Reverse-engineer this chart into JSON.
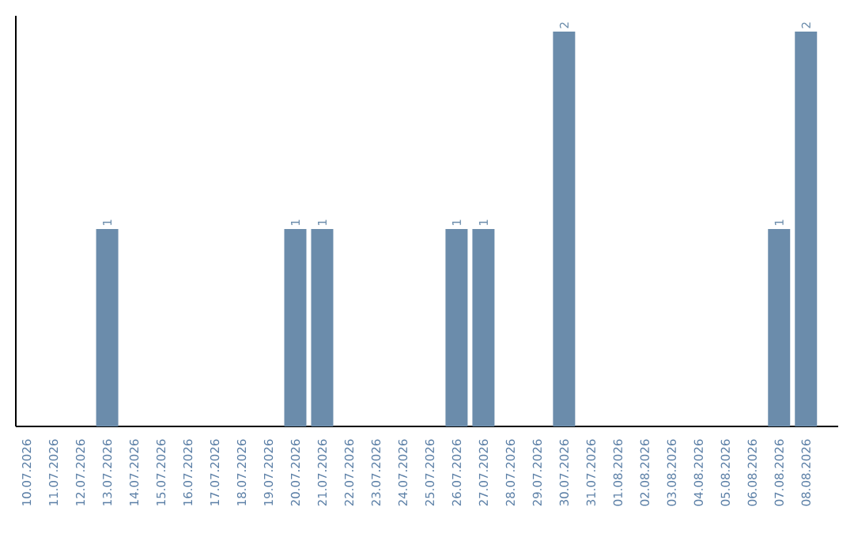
{
  "chart_data": {
    "type": "bar",
    "categories": [
      "10.07.2026",
      "11.07.2026",
      "12.07.2026",
      "13.07.2026",
      "14.07.2026",
      "15.07.2026",
      "16.07.2026",
      "17.07.2026",
      "18.07.2026",
      "19.07.2026",
      "20.07.2026",
      "21.07.2026",
      "22.07.2026",
      "23.07.2026",
      "24.07.2026",
      "25.07.2026",
      "26.07.2026",
      "27.07.2026",
      "28.07.2026",
      "29.07.2026",
      "30.07.2026",
      "31.07.2026",
      "01.08.2026",
      "02.08.2026",
      "03.08.2026",
      "04.08.2026",
      "05.08.2026",
      "06.08.2026",
      "07.08.2026",
      "08.08.2026"
    ],
    "values": [
      0,
      0,
      0,
      1,
      0,
      0,
      0,
      0,
      0,
      0,
      1,
      1,
      0,
      0,
      0,
      0,
      1,
      1,
      0,
      0,
      2,
      0,
      0,
      0,
      0,
      0,
      0,
      0,
      1,
      2
    ],
    "value_labels": [
      null,
      null,
      null,
      "1",
      null,
      null,
      null,
      null,
      null,
      null,
      "1",
      "1",
      null,
      null,
      null,
      null,
      "1",
      "1",
      null,
      null,
      "2",
      null,
      null,
      null,
      null,
      null,
      null,
      null,
      "1",
      "2"
    ],
    "color": "#6b8cab",
    "ylim": [
      0,
      2.08
    ],
    "tick_labels": "x"
  }
}
